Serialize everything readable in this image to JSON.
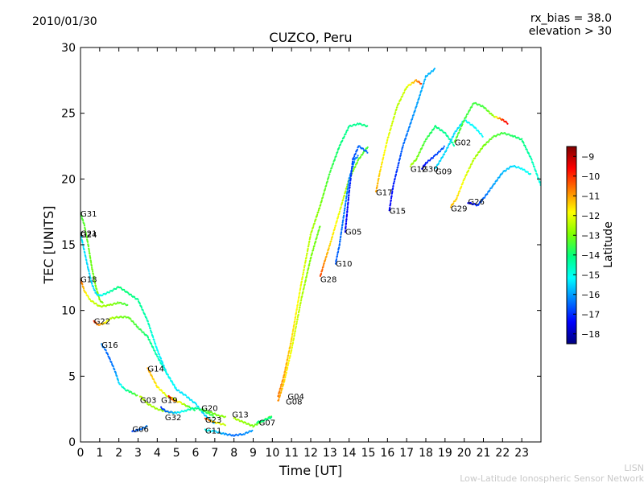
{
  "date": "2010/01/30",
  "rx_bias_label": "rx_bias = 38.0",
  "elevation_label": "elevation > 30",
  "footer_line1": "LISN",
  "footer_line2": "Low-Latitude Ionospheric Sensor Network",
  "colors": {
    "stops": [
      "#00007f",
      "#0000ff",
      "#007fff",
      "#00ffff",
      "#00ff7f",
      "#7fff00",
      "#ffff00",
      "#ff7f00",
      "#ff0000",
      "#7f0000"
    ]
  },
  "chart_data": {
    "type": "scatter",
    "title": "CUZCO, Peru",
    "xlabel": "Time [UT]",
    "ylabel": "TEC [UNITS]",
    "xlim": [
      0,
      24
    ],
    "ylim": [
      0,
      30
    ],
    "x_ticks": [
      0,
      1,
      2,
      3,
      4,
      5,
      6,
      7,
      8,
      9,
      10,
      11,
      12,
      13,
      14,
      15,
      16,
      17,
      18,
      19,
      20,
      21,
      22,
      23
    ],
    "y_ticks": [
      0,
      5,
      10,
      15,
      20,
      25,
      30
    ],
    "colorbar": {
      "label": "Latitude",
      "range": [
        -18.5,
        -8.5
      ],
      "ticks": [
        -18,
        -17,
        -16,
        -15,
        -14,
        -13,
        -12,
        -11,
        -10,
        -9
      ]
    },
    "series": [
      {
        "name": "G31",
        "points": [
          [
            0.0,
            17.4,
            -13.5
          ],
          [
            0.2,
            16.5,
            -13.3
          ],
          [
            0.4,
            15.0,
            -13.2
          ],
          [
            0.6,
            13.2,
            -13.1
          ],
          [
            0.8,
            11.8,
            -13.0
          ],
          [
            1.0,
            10.8,
            -13.0
          ],
          [
            1.2,
            10.5,
            -13.1
          ]
        ]
      },
      {
        "name": "G21",
        "points": [
          [
            0.0,
            15.9,
            -15.3
          ],
          [
            0.2,
            14.5,
            -15.4
          ],
          [
            0.4,
            13.2,
            -15.5
          ],
          [
            0.6,
            12.0,
            -15.5
          ],
          [
            0.8,
            11.3,
            -15.5
          ],
          [
            1.0,
            11.1,
            -15.2
          ],
          [
            1.5,
            11.4,
            -14.5
          ],
          [
            2.0,
            11.8,
            -14.0
          ],
          [
            2.5,
            11.3,
            -14.0
          ],
          [
            3.0,
            10.8,
            -14.2
          ],
          [
            3.5,
            9.2,
            -14.5
          ],
          [
            4.0,
            7.0,
            -15.2
          ],
          [
            4.5,
            5.2,
            -15.5
          ],
          [
            5.0,
            4.0,
            -15.5
          ],
          [
            5.5,
            3.5,
            -15.3
          ],
          [
            6.0,
            2.9,
            -15.4
          ],
          [
            6.5,
            2.0,
            -15.6
          ],
          [
            7.0,
            1.4,
            -15.8
          ]
        ]
      },
      {
        "name": "G18",
        "points": [
          [
            0.0,
            12.4,
            -10.2
          ],
          [
            0.2,
            11.5,
            -11.5
          ],
          [
            0.5,
            10.8,
            -12.2
          ],
          [
            1.0,
            10.3,
            -12.5
          ],
          [
            1.5,
            10.4,
            -12.8
          ],
          [
            2.0,
            10.6,
            -13.2
          ],
          [
            2.5,
            10.4,
            -13.5
          ]
        ]
      },
      {
        "name": "G22",
        "points": [
          [
            0.7,
            9.2,
            -10.0
          ],
          [
            0.9,
            8.9,
            -10.7
          ],
          [
            1.2,
            9.0,
            -11.5
          ],
          [
            1.6,
            9.4,
            -12.5
          ],
          [
            2.0,
            9.5,
            -13.0
          ],
          [
            2.5,
            9.5,
            -13.2
          ],
          [
            3.0,
            8.7,
            -13.5
          ],
          [
            3.5,
            8.0,
            -14.0
          ],
          [
            4.0,
            6.5,
            -14.5
          ],
          [
            4.5,
            5.2,
            -15.0
          ],
          [
            5.0,
            4.0,
            -15.2
          ]
        ]
      },
      {
        "name": "G16",
        "points": [
          [
            1.1,
            7.4,
            -16.2
          ],
          [
            1.3,
            7.0,
            -16.4
          ],
          [
            1.5,
            6.4,
            -16.5
          ],
          [
            1.8,
            5.4,
            -16.2
          ],
          [
            2.0,
            4.5,
            -15.5
          ],
          [
            2.3,
            4.0,
            -14.5
          ],
          [
            2.6,
            3.8,
            -13.8
          ],
          [
            3.0,
            3.5,
            -13.2
          ]
        ]
      },
      {
        "name": "G14",
        "points": [
          [
            3.5,
            5.6,
            -11.0
          ],
          [
            4.0,
            4.2,
            -11.7
          ],
          [
            4.5,
            3.5,
            -12.2
          ],
          [
            5.0,
            3.2,
            -12.5
          ]
        ]
      },
      {
        "name": "G03",
        "points": [
          [
            3.1,
            3.5,
            -12.4
          ],
          [
            3.5,
            2.9,
            -12.6
          ],
          [
            4.0,
            2.5,
            -12.7
          ],
          [
            4.5,
            2.3,
            -12.8
          ],
          [
            5.0,
            2.2,
            -12.8
          ]
        ]
      },
      {
        "name": "G19",
        "points": [
          [
            4.6,
            3.5,
            -9.5
          ],
          [
            4.8,
            3.2,
            -10.5
          ],
          [
            5.2,
            3.0,
            -12.0
          ],
          [
            5.6,
            2.7,
            -13.2
          ],
          [
            6.0,
            2.4,
            -14.0
          ]
        ]
      },
      {
        "name": "G32",
        "points": [
          [
            4.2,
            2.6,
            -17.0
          ],
          [
            4.5,
            2.3,
            -16.5
          ],
          [
            5.0,
            2.2,
            -15.5
          ],
          [
            5.5,
            2.4,
            -14.8
          ],
          [
            6.0,
            2.6,
            -14.2
          ],
          [
            6.5,
            2.3,
            -13.8
          ],
          [
            7.0,
            1.9,
            -13.5
          ]
        ]
      },
      {
        "name": "G06",
        "points": [
          [
            2.7,
            0.8,
            -16.8
          ],
          [
            3.0,
            0.9,
            -16.5
          ],
          [
            3.5,
            1.2,
            -16.2
          ]
        ]
      },
      {
        "name": "G20",
        "points": [
          [
            6.3,
            2.5,
            -13.5
          ],
          [
            6.7,
            2.3,
            -13.2
          ],
          [
            7.2,
            2.0,
            -13.0
          ],
          [
            7.6,
            1.9,
            -12.8
          ]
        ]
      },
      {
        "name": "G23",
        "points": [
          [
            6.5,
            1.8,
            -10.2
          ],
          [
            6.8,
            1.6,
            -11.0
          ],
          [
            7.2,
            1.4,
            -12.0
          ],
          [
            7.6,
            1.3,
            -12.5
          ]
        ]
      },
      {
        "name": "G11",
        "points": [
          [
            6.5,
            0.9,
            -15.0
          ],
          [
            7.0,
            0.8,
            -15.5
          ],
          [
            7.5,
            0.6,
            -16.0
          ],
          [
            8.0,
            0.5,
            -16.5
          ],
          [
            8.5,
            0.6,
            -16.2
          ],
          [
            9.0,
            0.9,
            -16.0
          ]
        ]
      },
      {
        "name": "G13",
        "points": [
          [
            8.0,
            1.8,
            -12.5
          ],
          [
            8.5,
            1.5,
            -12.8
          ],
          [
            9.0,
            1.2,
            -13.0
          ],
          [
            9.5,
            1.6,
            -13.3
          ],
          [
            10.0,
            2.0,
            -13.5
          ]
        ]
      },
      {
        "name": "G07",
        "points": [
          [
            9.2,
            1.5,
            -14.0
          ],
          [
            9.5,
            1.6,
            -14.1
          ],
          [
            10.0,
            1.9,
            -14.2
          ]
        ]
      },
      {
        "name": "G04",
        "points": [
          [
            10.3,
            3.5,
            -10.6
          ],
          [
            10.6,
            5.0,
            -11.0
          ],
          [
            11.0,
            7.8,
            -11.5
          ],
          [
            11.5,
            12.0,
            -12.0
          ],
          [
            12.0,
            15.8,
            -12.5
          ],
          [
            12.5,
            18.0,
            -13.0
          ],
          [
            13.0,
            20.5,
            -13.5
          ],
          [
            13.5,
            22.5,
            -14.0
          ],
          [
            14.0,
            24.0,
            -14.2
          ],
          [
            14.5,
            24.2,
            -14.2
          ],
          [
            15.0,
            24.0,
            -14.0
          ]
        ]
      },
      {
        "name": "G08",
        "points": [
          [
            10.3,
            3.1,
            -10.8
          ],
          [
            10.6,
            4.5,
            -11.5
          ],
          [
            11.0,
            7.0,
            -12.0
          ],
          [
            11.5,
            10.8,
            -12.5
          ],
          [
            12.0,
            14.0,
            -13.0
          ],
          [
            12.5,
            16.5,
            -13.2
          ]
        ]
      },
      {
        "name": "G28",
        "points": [
          [
            12.5,
            12.6,
            -10.2
          ],
          [
            12.7,
            13.6,
            -10.8
          ],
          [
            13.0,
            15.0,
            -11.5
          ],
          [
            13.5,
            17.5,
            -12.0
          ],
          [
            14.0,
            20.0,
            -12.8
          ],
          [
            14.5,
            21.5,
            -13.2
          ],
          [
            15.0,
            22.5,
            -13.5
          ]
        ]
      },
      {
        "name": "G10",
        "points": [
          [
            13.3,
            13.6,
            -16.6
          ],
          [
            13.5,
            15.0,
            -16.5
          ],
          [
            13.8,
            18.0,
            -16.3
          ],
          [
            14.0,
            20.0,
            -16.2
          ],
          [
            14.3,
            21.5,
            -16.2
          ],
          [
            14.5,
            21.8,
            -16.3
          ]
        ]
      },
      {
        "name": "G05",
        "points": [
          [
            13.8,
            16.0,
            -17.5
          ],
          [
            14.0,
            19.0,
            -17.2
          ],
          [
            14.2,
            21.5,
            -16.8
          ],
          [
            14.5,
            22.5,
            -16.5
          ],
          [
            15.0,
            22.0,
            -16.5
          ]
        ]
      },
      {
        "name": "G17",
        "points": [
          [
            15.4,
            19.0,
            -11.0
          ],
          [
            15.6,
            20.5,
            -11.5
          ],
          [
            16.0,
            23.0,
            -12.0
          ],
          [
            16.5,
            25.5,
            -12.5
          ],
          [
            17.0,
            27.0,
            -12.2
          ],
          [
            17.5,
            27.5,
            -11.0
          ],
          [
            17.8,
            27.2,
            -10.0
          ]
        ]
      },
      {
        "name": "G15",
        "points": [
          [
            16.1,
            17.6,
            -17.5
          ],
          [
            16.3,
            19.5,
            -17.2
          ],
          [
            16.8,
            22.5,
            -16.5
          ],
          [
            17.5,
            25.5,
            -16.0
          ],
          [
            18.0,
            27.8,
            -15.8
          ],
          [
            18.5,
            28.4,
            -15.8
          ]
        ]
      },
      {
        "name": "G12",
        "points": [
          [
            17.2,
            21.0,
            -12.5
          ],
          [
            17.5,
            21.5,
            -13.0
          ],
          [
            18.0,
            23.0,
            -13.5
          ],
          [
            18.5,
            24.0,
            -14.0
          ],
          [
            19.0,
            23.5,
            -14.2
          ],
          [
            19.5,
            22.5,
            -14.5
          ]
        ]
      },
      {
        "name": "G30",
        "points": [
          [
            17.8,
            20.8,
            -17.5
          ],
          [
            18.0,
            21.2,
            -17.2
          ],
          [
            18.5,
            21.8,
            -16.8
          ],
          [
            19.0,
            22.5,
            -16.5
          ]
        ]
      },
      {
        "name": "G09",
        "points": [
          [
            18.5,
            20.8,
            -15.5
          ],
          [
            19.0,
            22.0,
            -15.5
          ],
          [
            19.5,
            23.5,
            -15.5
          ],
          [
            20.0,
            24.5,
            -15.3
          ],
          [
            20.5,
            24.0,
            -15.2
          ],
          [
            21.0,
            23.2,
            -15.2
          ]
        ]
      },
      {
        "name": "G02",
        "points": [
          [
            19.5,
            22.8,
            -13.3
          ],
          [
            20.0,
            24.5,
            -13.5
          ],
          [
            20.5,
            25.8,
            -13.5
          ],
          [
            21.0,
            25.5,
            -13.5
          ],
          [
            21.5,
            24.8,
            -12.8
          ],
          [
            22.0,
            24.5,
            -10.0
          ],
          [
            22.3,
            24.2,
            -9.5
          ]
        ]
      },
      {
        "name": "G29",
        "points": [
          [
            19.3,
            17.9,
            -11.2
          ],
          [
            19.6,
            18.5,
            -11.5
          ],
          [
            20.0,
            20.0,
            -12.0
          ],
          [
            20.5,
            21.5,
            -12.5
          ],
          [
            21.0,
            22.5,
            -13.0
          ],
          [
            21.5,
            23.2,
            -13.3
          ],
          [
            22.0,
            23.5,
            -13.5
          ],
          [
            22.5,
            23.3,
            -13.8
          ],
          [
            23.0,
            23.0,
            -14.0
          ],
          [
            23.5,
            21.5,
            -14.5
          ],
          [
            24.0,
            19.5,
            -15.0
          ]
        ]
      },
      {
        "name": "G26",
        "points": [
          [
            20.2,
            18.2,
            -17.5
          ],
          [
            20.7,
            18.0,
            -17.0
          ],
          [
            21.0,
            18.5,
            -16.5
          ],
          [
            21.5,
            19.5,
            -16.0
          ],
          [
            22.0,
            20.5,
            -15.8
          ],
          [
            22.5,
            21.0,
            -15.5
          ],
          [
            23.0,
            20.8,
            -15.2
          ],
          [
            23.5,
            20.3,
            -15.0
          ]
        ]
      }
    ],
    "labels": [
      {
        "text": "G31",
        "x": 0.0,
        "y": 17.4
      },
      {
        "text": "G21",
        "x": 0.0,
        "y": 15.9
      },
      {
        "text": "G24",
        "x": 0.0,
        "y": 15.8
      },
      {
        "text": "G18",
        "x": 0.0,
        "y": 12.4
      },
      {
        "text": "G22",
        "x": 0.7,
        "y": 9.2
      },
      {
        "text": "G16",
        "x": 1.1,
        "y": 7.4
      },
      {
        "text": "G14",
        "x": 3.5,
        "y": 5.6
      },
      {
        "text": "G03",
        "x": 3.1,
        "y": 3.2
      },
      {
        "text": "G19",
        "x": 4.2,
        "y": 3.2
      },
      {
        "text": "G32",
        "x": 4.4,
        "y": 1.9
      },
      {
        "text": "G06",
        "x": 2.7,
        "y": 1.0
      },
      {
        "text": "G20",
        "x": 6.3,
        "y": 2.6
      },
      {
        "text": "G23",
        "x": 6.5,
        "y": 1.7
      },
      {
        "text": "G11",
        "x": 6.5,
        "y": 0.9
      },
      {
        "text": "G13",
        "x": 7.9,
        "y": 2.1
      },
      {
        "text": "G07",
        "x": 9.3,
        "y": 1.5
      },
      {
        "text": "G04",
        "x": 10.8,
        "y": 3.5
      },
      {
        "text": "G08",
        "x": 10.7,
        "y": 3.1
      },
      {
        "text": "G28",
        "x": 12.5,
        "y": 12.4
      },
      {
        "text": "G10",
        "x": 13.3,
        "y": 13.6
      },
      {
        "text": "G05",
        "x": 13.8,
        "y": 16.0
      },
      {
        "text": "G17",
        "x": 15.4,
        "y": 19.0
      },
      {
        "text": "G15",
        "x": 16.1,
        "y": 17.6
      },
      {
        "text": "G12",
        "x": 17.2,
        "y": 20.8
      },
      {
        "text": "G30",
        "x": 17.8,
        "y": 20.8
      },
      {
        "text": "G09",
        "x": 18.5,
        "y": 20.6
      },
      {
        "text": "G02",
        "x": 19.5,
        "y": 22.8
      },
      {
        "text": "G29",
        "x": 19.3,
        "y": 17.8
      },
      {
        "text": "G26",
        "x": 20.2,
        "y": 18.3
      }
    ]
  }
}
